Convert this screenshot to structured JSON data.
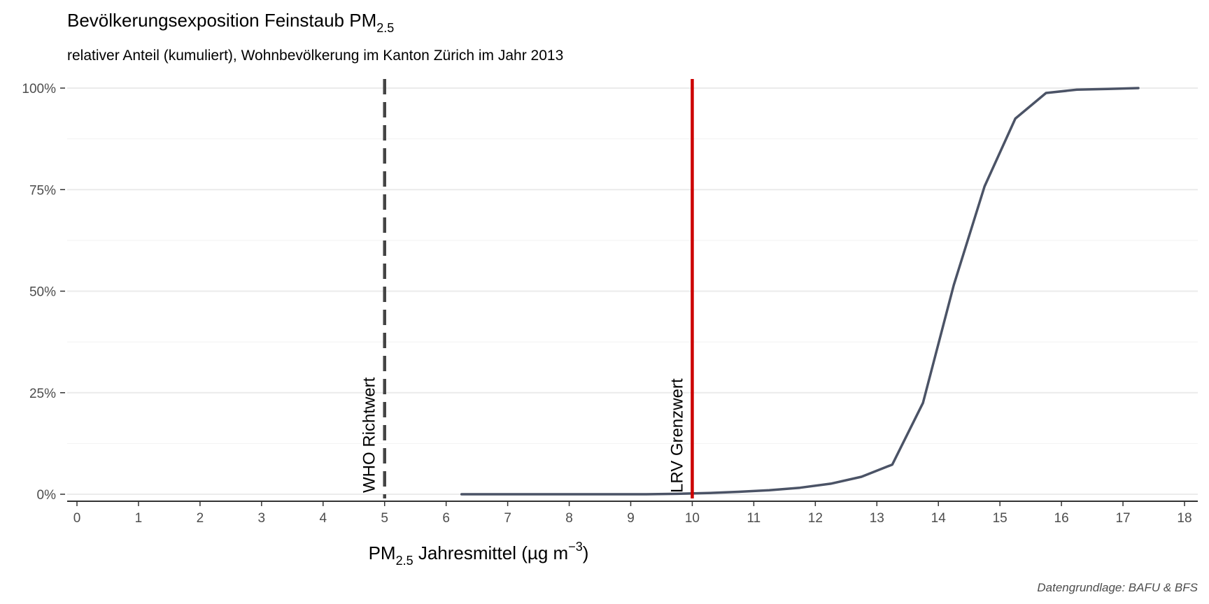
{
  "chart_data": {
    "type": "line",
    "title": {
      "main": "Bevölkerungsexposition Feinstaub PM",
      "sub": "2.5"
    },
    "subtitle": "relativer Anteil (kumuliert), Wohnbevölkerung im Kanton Zürich im Jahr 2013",
    "xlabel": {
      "pre": "PM",
      "sub": "2.5",
      "mid": " Jahresmittel (µg m",
      "sup": "−3",
      "post": ")"
    },
    "ylabel": "",
    "xlim": [
      0,
      18
    ],
    "ylim": [
      0,
      100
    ],
    "x_ticks": [
      0,
      1,
      2,
      3,
      4,
      5,
      6,
      7,
      8,
      9,
      10,
      11,
      12,
      13,
      14,
      15,
      16,
      17,
      18
    ],
    "y_ticks": [
      {
        "value": 0,
        "label": "0%"
      },
      {
        "value": 25,
        "label": "25%"
      },
      {
        "value": 50,
        "label": "50%"
      },
      {
        "value": 75,
        "label": "75%"
      },
      {
        "value": 100,
        "label": "100%"
      }
    ],
    "grid": true,
    "series": [
      {
        "color": "#4b5366",
        "points": [
          [
            6.25,
            0
          ],
          [
            6.75,
            0
          ],
          [
            7.25,
            0
          ],
          [
            7.75,
            0
          ],
          [
            8.25,
            0
          ],
          [
            8.75,
            0
          ],
          [
            9.25,
            0
          ],
          [
            9.75,
            0.1
          ],
          [
            10.25,
            0.3
          ],
          [
            10.75,
            0.6
          ],
          [
            11.25,
            1.0
          ],
          [
            11.75,
            1.6
          ],
          [
            12.25,
            2.6
          ],
          [
            12.75,
            4.3
          ],
          [
            13.25,
            7.3
          ],
          [
            13.75,
            22.5
          ],
          [
            14.25,
            51.5
          ],
          [
            14.75,
            75.8
          ],
          [
            15.25,
            92.5
          ],
          [
            15.75,
            98.8
          ],
          [
            16.25,
            99.6
          ],
          [
            16.75,
            99.8
          ],
          [
            17.25,
            100
          ]
        ]
      }
    ],
    "reference_lines": [
      {
        "x": 5,
        "label": "WHO Richtwert",
        "color": "#444444",
        "style": "dashed"
      },
      {
        "x": 10,
        "label": "LRV Grenzwert",
        "color": "#cc0000",
        "style": "solid"
      }
    ],
    "caption": "Datengrundlage: BAFU & BFS"
  }
}
